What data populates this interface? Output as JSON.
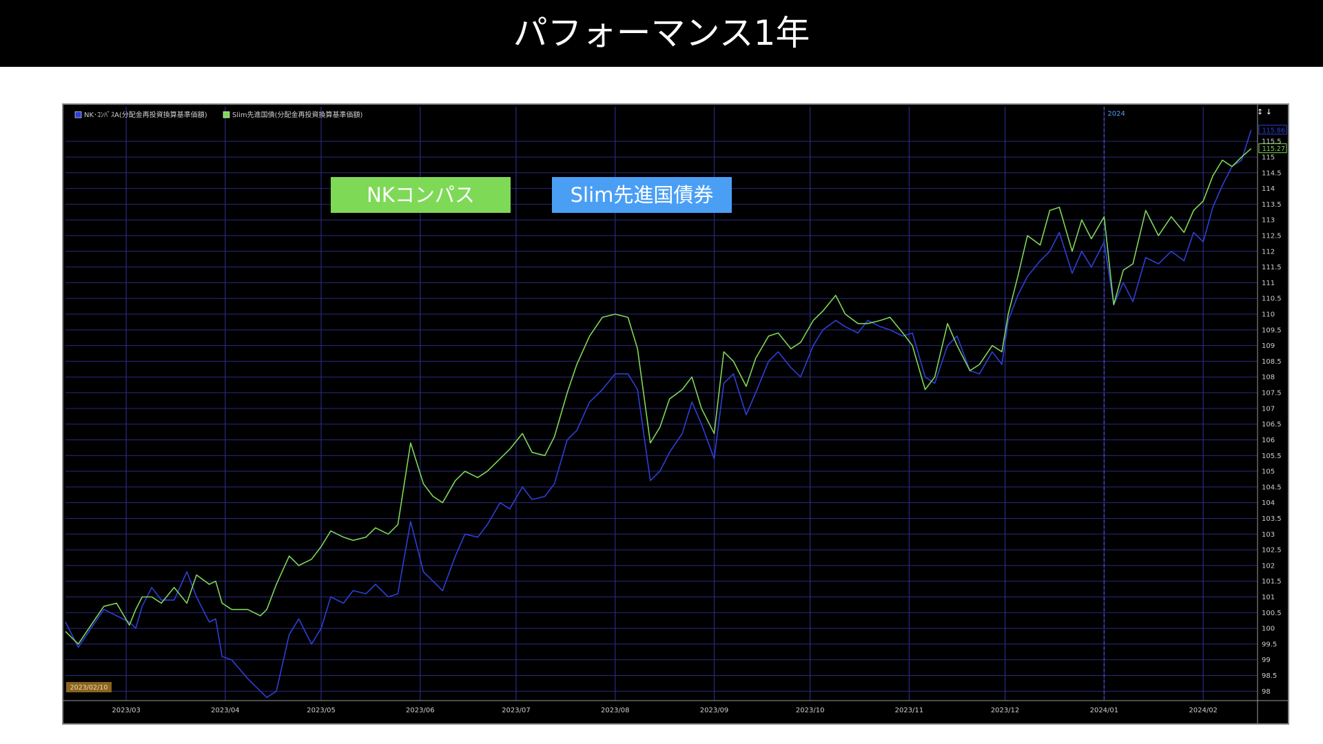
{
  "title": "パフォーマンス1年",
  "labels": {
    "nk": "NKコンパス",
    "slim": "Slim先進国債券"
  },
  "colors": {
    "background": "#000000",
    "grid": "#2a2a80",
    "text": "#cfcfcf",
    "nk_series": "#2f3fd8",
    "slim_series": "#7ed957",
    "nk_label_bg": "#7ed957",
    "slim_label_bg": "#4a9ff5",
    "start_badge": "#8a6420"
  },
  "chart_data": {
    "type": "line",
    "ylim": [
      97.7,
      116.6
    ],
    "xlim": [
      "2023/02/10",
      "2024/02/18"
    ],
    "y_ticks": [
      98,
      98.5,
      99,
      99.5,
      100,
      100.5,
      101,
      101.5,
      102,
      102.5,
      103,
      103.5,
      104,
      104.5,
      105,
      105.5,
      106,
      106.5,
      107,
      107.5,
      108,
      108.5,
      109,
      109.5,
      110,
      110.5,
      111,
      111.5,
      112,
      112.5,
      113,
      113.5,
      114,
      114.5,
      115,
      115.5
    ],
    "x_ticks": [
      {
        "date": "2023/03/01",
        "label": "2023/03"
      },
      {
        "date": "2023/04/01",
        "label": "2023/04"
      },
      {
        "date": "2023/05/01",
        "label": "2023/05"
      },
      {
        "date": "2023/06/01",
        "label": "2023/06"
      },
      {
        "date": "2023/07/01",
        "label": "2023/07"
      },
      {
        "date": "2023/08/01",
        "label": "2023/08"
      },
      {
        "date": "2023/09/01",
        "label": "2023/09"
      },
      {
        "date": "2023/10/01",
        "label": "2023/10"
      },
      {
        "date": "2023/11/01",
        "label": "2023/11"
      },
      {
        "date": "2023/12/01",
        "label": "2023/12"
      },
      {
        "date": "2024/01/01",
        "label": "2024/01"
      },
      {
        "date": "2024/02/01",
        "label": "2024/02"
      }
    ],
    "year_marker": {
      "date": "2024/01/01",
      "label": "2024"
    },
    "start_label": "2023/02/10",
    "series": [
      {
        "name": "NK･ｺﾝﾊﾟｽA(分配金再投資換算基準価額)",
        "last_value_label": "115.86",
        "points": [
          [
            "2023/02/10",
            100.2
          ],
          [
            "2023/02/14",
            99.4
          ],
          [
            "2023/02/18",
            100.0
          ],
          [
            "2023/02/22",
            100.6
          ],
          [
            "2023/02/26",
            100.4
          ],
          [
            "2023/03/02",
            100.2
          ],
          [
            "2023/03/04",
            100.0
          ],
          [
            "2023/03/06",
            100.7
          ],
          [
            "2023/03/09",
            101.3
          ],
          [
            "2023/03/12",
            100.9
          ],
          [
            "2023/03/16",
            100.9
          ],
          [
            "2023/03/20",
            101.8
          ],
          [
            "2023/03/23",
            101.0
          ],
          [
            "2023/03/27",
            100.2
          ],
          [
            "2023/03/29",
            100.3
          ],
          [
            "2023/03/31",
            99.1
          ],
          [
            "2023/04/03",
            99.0
          ],
          [
            "2023/04/08",
            98.4
          ],
          [
            "2023/04/12",
            98.0
          ],
          [
            "2023/04/14",
            97.8
          ],
          [
            "2023/04/17",
            98.0
          ],
          [
            "2023/04/21",
            99.8
          ],
          [
            "2023/04/24",
            100.3
          ],
          [
            "2023/04/28",
            99.5
          ],
          [
            "2023/05/01",
            100.0
          ],
          [
            "2023/05/04",
            101.0
          ],
          [
            "2023/05/08",
            100.8
          ],
          [
            "2023/05/11",
            101.2
          ],
          [
            "2023/05/15",
            101.1
          ],
          [
            "2023/05/18",
            101.4
          ],
          [
            "2023/05/22",
            101.0
          ],
          [
            "2023/05/25",
            101.1
          ],
          [
            "2023/05/29",
            103.4
          ],
          [
            "2023/06/02",
            101.8
          ],
          [
            "2023/06/05",
            101.5
          ],
          [
            "2023/06/08",
            101.2
          ],
          [
            "2023/06/12",
            102.3
          ],
          [
            "2023/06/15",
            103.0
          ],
          [
            "2023/06/19",
            102.9
          ],
          [
            "2023/06/22",
            103.3
          ],
          [
            "2023/06/26",
            104.0
          ],
          [
            "2023/06/29",
            103.8
          ],
          [
            "2023/07/03",
            104.5
          ],
          [
            "2023/07/06",
            104.1
          ],
          [
            "2023/07/10",
            104.2
          ],
          [
            "2023/07/13",
            104.6
          ],
          [
            "2023/07/17",
            106.0
          ],
          [
            "2023/07/20",
            106.3
          ],
          [
            "2023/07/24",
            107.2
          ],
          [
            "2023/07/28",
            107.6
          ],
          [
            "2023/08/01",
            108.1
          ],
          [
            "2023/08/05",
            108.1
          ],
          [
            "2023/08/08",
            107.6
          ],
          [
            "2023/08/12",
            104.7
          ],
          [
            "2023/08/15",
            105.0
          ],
          [
            "2023/08/18",
            105.6
          ],
          [
            "2023/08/22",
            106.2
          ],
          [
            "2023/08/25",
            107.2
          ],
          [
            "2023/08/28",
            106.5
          ],
          [
            "2023/09/01",
            105.4
          ],
          [
            "2023/09/04",
            107.8
          ],
          [
            "2023/09/07",
            108.1
          ],
          [
            "2023/09/11",
            106.8
          ],
          [
            "2023/09/14",
            107.5
          ],
          [
            "2023/09/18",
            108.5
          ],
          [
            "2023/09/21",
            108.8
          ],
          [
            "2023/09/25",
            108.3
          ],
          [
            "2023/09/28",
            108.0
          ],
          [
            "2023/10/02",
            109.0
          ],
          [
            "2023/10/05",
            109.5
          ],
          [
            "2023/10/09",
            109.8
          ],
          [
            "2023/10/12",
            109.6
          ],
          [
            "2023/10/16",
            109.4
          ],
          [
            "2023/10/19",
            109.8
          ],
          [
            "2023/10/23",
            109.6
          ],
          [
            "2023/10/26",
            109.5
          ],
          [
            "2023/10/30",
            109.3
          ],
          [
            "2023/11/02",
            109.4
          ],
          [
            "2023/11/06",
            108.0
          ],
          [
            "2023/11/09",
            107.8
          ],
          [
            "2023/11/13",
            109.0
          ],
          [
            "2023/11/16",
            109.3
          ],
          [
            "2023/11/20",
            108.2
          ],
          [
            "2023/11/23",
            108.1
          ],
          [
            "2023/11/27",
            108.8
          ],
          [
            "2023/11/30",
            108.4
          ],
          [
            "2023/12/02",
            109.8
          ],
          [
            "2023/12/05",
            110.6
          ],
          [
            "2023/12/08",
            111.2
          ],
          [
            "2023/12/12",
            111.7
          ],
          [
            "2023/12/15",
            112.0
          ],
          [
            "2023/12/18",
            112.6
          ],
          [
            "2023/12/22",
            111.3
          ],
          [
            "2023/12/25",
            112.0
          ],
          [
            "2023/12/28",
            111.5
          ],
          [
            "2024/01/01",
            112.3
          ],
          [
            "2024/01/04",
            110.3
          ],
          [
            "2024/01/07",
            111.0
          ],
          [
            "2024/01/10",
            110.4
          ],
          [
            "2024/01/14",
            111.8
          ],
          [
            "2024/01/18",
            111.6
          ],
          [
            "2024/01/22",
            112.0
          ],
          [
            "2024/01/26",
            111.7
          ],
          [
            "2024/01/29",
            112.6
          ],
          [
            "2024/02/01",
            112.3
          ],
          [
            "2024/02/04",
            113.4
          ],
          [
            "2024/02/07",
            114.1
          ],
          [
            "2024/02/10",
            114.7
          ],
          [
            "2024/02/13",
            114.9
          ],
          [
            "2024/02/16",
            115.86
          ]
        ]
      },
      {
        "name": "Slim先進国債(分配金再投資換算基準価額)",
        "last_value_label": "115.27",
        "points": [
          [
            "2023/02/10",
            99.9
          ],
          [
            "2023/02/14",
            99.5
          ],
          [
            "2023/02/18",
            100.1
          ],
          [
            "2023/02/22",
            100.7
          ],
          [
            "2023/02/26",
            100.8
          ],
          [
            "2023/03/02",
            100.1
          ],
          [
            "2023/03/04",
            100.6
          ],
          [
            "2023/03/06",
            101.0
          ],
          [
            "2023/03/09",
            101.0
          ],
          [
            "2023/03/12",
            100.8
          ],
          [
            "2023/03/16",
            101.3
          ],
          [
            "2023/03/20",
            100.8
          ],
          [
            "2023/03/23",
            101.7
          ],
          [
            "2023/03/27",
            101.4
          ],
          [
            "2023/03/29",
            101.5
          ],
          [
            "2023/03/31",
            100.8
          ],
          [
            "2023/04/03",
            100.6
          ],
          [
            "2023/04/08",
            100.6
          ],
          [
            "2023/04/12",
            100.4
          ],
          [
            "2023/04/14",
            100.6
          ],
          [
            "2023/04/17",
            101.4
          ],
          [
            "2023/04/21",
            102.3
          ],
          [
            "2023/04/24",
            102.0
          ],
          [
            "2023/04/28",
            102.2
          ],
          [
            "2023/05/01",
            102.6
          ],
          [
            "2023/05/04",
            103.1
          ],
          [
            "2023/05/08",
            102.9
          ],
          [
            "2023/05/11",
            102.8
          ],
          [
            "2023/05/15",
            102.9
          ],
          [
            "2023/05/18",
            103.2
          ],
          [
            "2023/05/22",
            103.0
          ],
          [
            "2023/05/25",
            103.3
          ],
          [
            "2023/05/29",
            105.9
          ],
          [
            "2023/06/02",
            104.6
          ],
          [
            "2023/06/05",
            104.2
          ],
          [
            "2023/06/08",
            104.0
          ],
          [
            "2023/06/12",
            104.7
          ],
          [
            "2023/06/15",
            105.0
          ],
          [
            "2023/06/19",
            104.8
          ],
          [
            "2023/06/22",
            105.0
          ],
          [
            "2023/06/26",
            105.4
          ],
          [
            "2023/06/29",
            105.7
          ],
          [
            "2023/07/03",
            106.2
          ],
          [
            "2023/07/06",
            105.6
          ],
          [
            "2023/07/10",
            105.5
          ],
          [
            "2023/07/13",
            106.1
          ],
          [
            "2023/07/17",
            107.5
          ],
          [
            "2023/07/20",
            108.4
          ],
          [
            "2023/07/24",
            109.3
          ],
          [
            "2023/07/28",
            109.9
          ],
          [
            "2023/08/01",
            110.0
          ],
          [
            "2023/08/05",
            109.9
          ],
          [
            "2023/08/08",
            108.9
          ],
          [
            "2023/08/12",
            105.9
          ],
          [
            "2023/08/15",
            106.4
          ],
          [
            "2023/08/18",
            107.3
          ],
          [
            "2023/08/22",
            107.6
          ],
          [
            "2023/08/25",
            108.0
          ],
          [
            "2023/08/28",
            107.0
          ],
          [
            "2023/09/01",
            106.2
          ],
          [
            "2023/09/04",
            108.8
          ],
          [
            "2023/09/07",
            108.5
          ],
          [
            "2023/09/11",
            107.7
          ],
          [
            "2023/09/14",
            108.6
          ],
          [
            "2023/09/18",
            109.3
          ],
          [
            "2023/09/21",
            109.4
          ],
          [
            "2023/09/25",
            108.9
          ],
          [
            "2023/09/28",
            109.1
          ],
          [
            "2023/10/02",
            109.8
          ],
          [
            "2023/10/05",
            110.1
          ],
          [
            "2023/10/09",
            110.6
          ],
          [
            "2023/10/12",
            110.0
          ],
          [
            "2023/10/16",
            109.7
          ],
          [
            "2023/10/19",
            109.7
          ],
          [
            "2023/10/23",
            109.8
          ],
          [
            "2023/10/26",
            109.9
          ],
          [
            "2023/10/30",
            109.4
          ],
          [
            "2023/11/02",
            109.0
          ],
          [
            "2023/11/06",
            107.6
          ],
          [
            "2023/11/09",
            108.0
          ],
          [
            "2023/11/13",
            109.7
          ],
          [
            "2023/11/16",
            109.0
          ],
          [
            "2023/11/20",
            108.2
          ],
          [
            "2023/11/23",
            108.4
          ],
          [
            "2023/11/27",
            109.0
          ],
          [
            "2023/11/30",
            108.8
          ],
          [
            "2023/12/02",
            110.0
          ],
          [
            "2023/12/05",
            111.2
          ],
          [
            "2023/12/08",
            112.5
          ],
          [
            "2023/12/12",
            112.2
          ],
          [
            "2023/12/15",
            113.3
          ],
          [
            "2023/12/18",
            113.4
          ],
          [
            "2023/12/22",
            112.0
          ],
          [
            "2023/12/25",
            113.0
          ],
          [
            "2023/12/28",
            112.4
          ],
          [
            "2024/01/01",
            113.1
          ],
          [
            "2024/01/04",
            110.3
          ],
          [
            "2024/01/07",
            111.4
          ],
          [
            "2024/01/10",
            111.6
          ],
          [
            "2024/01/14",
            113.3
          ],
          [
            "2024/01/18",
            112.5
          ],
          [
            "2024/01/22",
            113.1
          ],
          [
            "2024/01/26",
            112.6
          ],
          [
            "2024/01/29",
            113.3
          ],
          [
            "2024/02/01",
            113.6
          ],
          [
            "2024/02/04",
            114.4
          ],
          [
            "2024/02/07",
            114.9
          ],
          [
            "2024/02/10",
            114.7
          ],
          [
            "2024/02/13",
            115.0
          ],
          [
            "2024/02/16",
            115.27
          ]
        ]
      }
    ]
  }
}
